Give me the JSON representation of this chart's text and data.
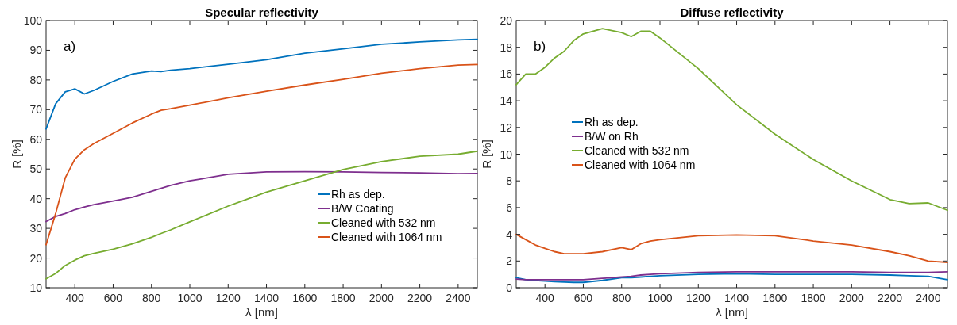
{
  "chart_data": [
    {
      "type": "line",
      "title": "Specular reflectivity",
      "xlabel": "λ [nm]",
      "ylabel": "R [%]",
      "annotations": [
        "a)"
      ],
      "x": [
        250,
        300,
        350,
        400,
        450,
        500,
        600,
        700,
        800,
        850,
        900,
        1000,
        1200,
        1400,
        1600,
        1800,
        2000,
        2200,
        2400,
        2500
      ],
      "xlim": [
        250,
        2500
      ],
      "xticks": [
        400,
        600,
        800,
        1000,
        1200,
        1400,
        1600,
        1800,
        2000,
        2200,
        2400
      ],
      "ylim": [
        10,
        100
      ],
      "yticks": [
        10,
        20,
        30,
        40,
        50,
        60,
        70,
        80,
        90,
        100
      ],
      "legend": "bottom right",
      "series": [
        {
          "name": "Rh as dep.",
          "color": "#0072bd",
          "values": [
            63.5,
            72,
            76,
            77,
            75.3,
            76.5,
            79.5,
            82,
            83,
            82.8,
            83.3,
            83.8,
            85.3,
            86.8,
            89,
            90.5,
            92,
            92.8,
            93.5,
            93.7
          ]
        },
        {
          "name": "B/W Coating",
          "color": "#7e2f8e",
          "values": [
            32.3,
            34,
            35,
            36.3,
            37.2,
            38,
            39.2,
            40.5,
            42.5,
            43.5,
            44.5,
            46,
            48.2,
            49,
            49.1,
            49,
            48.8,
            48.7,
            48.4,
            48.5
          ]
        },
        {
          "name": "Cleaned with 532 nm",
          "color": "#77ac30",
          "values": [
            13,
            14.8,
            17.5,
            19.3,
            20.8,
            21.6,
            23,
            24.8,
            27,
            28.3,
            29.5,
            32.2,
            37.5,
            42.2,
            46,
            49.8,
            52.5,
            54.3,
            55,
            56
          ]
        },
        {
          "name": "Cleaned with 1064 nm",
          "color": "#d95319",
          "values": [
            24.5,
            35,
            47,
            53.3,
            56.5,
            58.6,
            62,
            65.5,
            68.5,
            69.8,
            70.3,
            71.5,
            74,
            76.2,
            78.3,
            80.2,
            82.3,
            83.8,
            85,
            85.2
          ]
        }
      ]
    },
    {
      "type": "line",
      "title": "Diffuse reflectivity",
      "xlabel": "λ [nm]",
      "ylabel": "R [%]",
      "annotations": [
        "b)"
      ],
      "x": [
        250,
        300,
        350,
        400,
        450,
        500,
        550,
        600,
        700,
        800,
        850,
        900,
        950,
        1000,
        1200,
        1400,
        1600,
        1800,
        2000,
        2200,
        2300,
        2400,
        2500
      ],
      "xlim": [
        250,
        2500
      ],
      "xticks": [
        400,
        600,
        800,
        1000,
        1200,
        1400,
        1600,
        1800,
        2000,
        2200,
        2400
      ],
      "ylim": [
        0,
        20
      ],
      "yticks": [
        0,
        2,
        4,
        6,
        8,
        10,
        12,
        14,
        16,
        18,
        20
      ],
      "legend": "left",
      "series": [
        {
          "name": "Rh as dep.",
          "color": "#0072bd",
          "values": [
            0.75,
            0.6,
            0.55,
            0.5,
            0.45,
            0.42,
            0.4,
            0.4,
            0.55,
            0.75,
            0.75,
            0.8,
            0.85,
            0.9,
            1.0,
            1.05,
            1.0,
            1.0,
            1.0,
            0.95,
            0.9,
            0.85,
            0.6
          ]
        },
        {
          "name": "B/W on Rh",
          "color": "#7e2f8e",
          "values": [
            0.65,
            0.6,
            0.6,
            0.6,
            0.6,
            0.6,
            0.6,
            0.6,
            0.7,
            0.8,
            0.85,
            0.95,
            1.0,
            1.05,
            1.15,
            1.2,
            1.2,
            1.2,
            1.2,
            1.15,
            1.15,
            1.15,
            1.2
          ]
        },
        {
          "name": "Cleaned with 532 nm",
          "color": "#77ac30",
          "values": [
            15.2,
            16,
            16,
            16.5,
            17.2,
            17.7,
            18.5,
            19,
            19.4,
            19.1,
            18.8,
            19.2,
            19.2,
            18.7,
            16.4,
            13.7,
            11.5,
            9.6,
            8.0,
            6.6,
            6.3,
            6.35,
            5.8
          ]
        },
        {
          "name": "Cleaned with 1064 nm",
          "color": "#d95319",
          "values": [
            4,
            3.6,
            3.2,
            2.95,
            2.7,
            2.55,
            2.55,
            2.55,
            2.7,
            3.0,
            2.85,
            3.3,
            3.5,
            3.6,
            3.9,
            3.95,
            3.9,
            3.5,
            3.2,
            2.7,
            2.4,
            2.0,
            1.9
          ]
        }
      ]
    }
  ]
}
